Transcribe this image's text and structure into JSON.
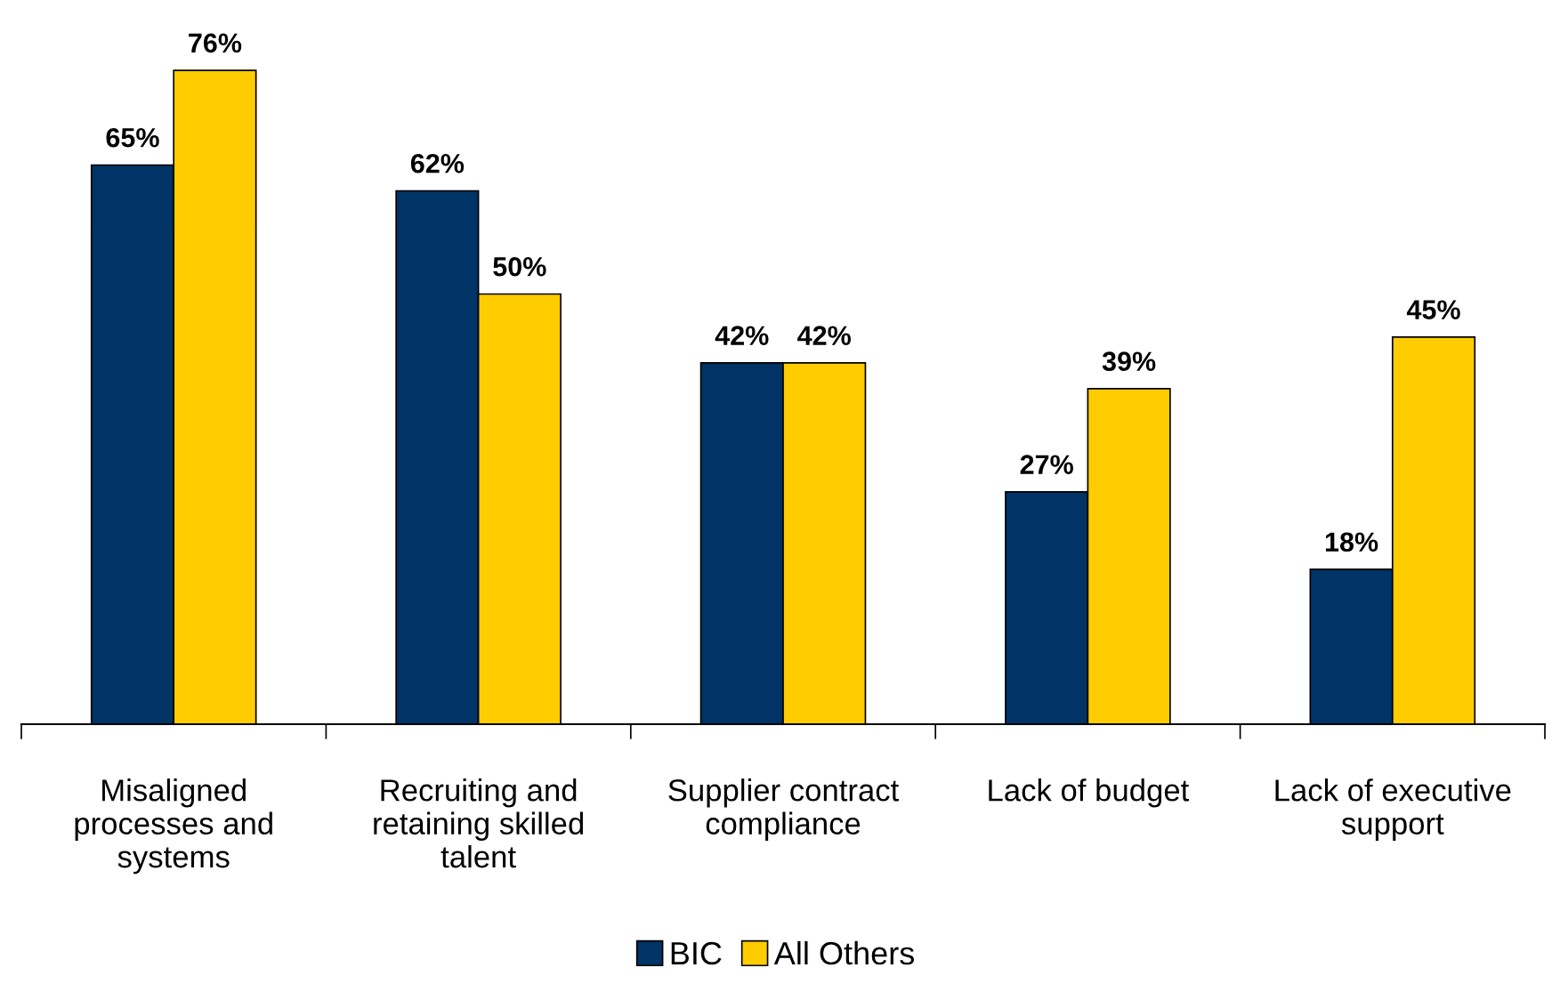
{
  "chart_data": {
    "type": "bar",
    "categories": [
      "Misaligned processes and systems",
      "Recruiting and retaining skilled talent",
      "Supplier contract compliance",
      "Lack of budget",
      "Lack of executive support"
    ],
    "series": [
      {
        "name": "BIC",
        "color": "#003366",
        "values": [
          65,
          62,
          42,
          27,
          18
        ],
        "value_labels": [
          "65%",
          "62%",
          "42%",
          "27%",
          "18%"
        ]
      },
      {
        "name": "All Others",
        "color": "#ffcc00",
        "values": [
          76,
          50,
          42,
          39,
          45
        ],
        "value_labels": [
          "76%",
          "50%",
          "42%",
          "39%",
          "45%"
        ]
      }
    ],
    "legend": "bottom",
    "grid": false
  }
}
